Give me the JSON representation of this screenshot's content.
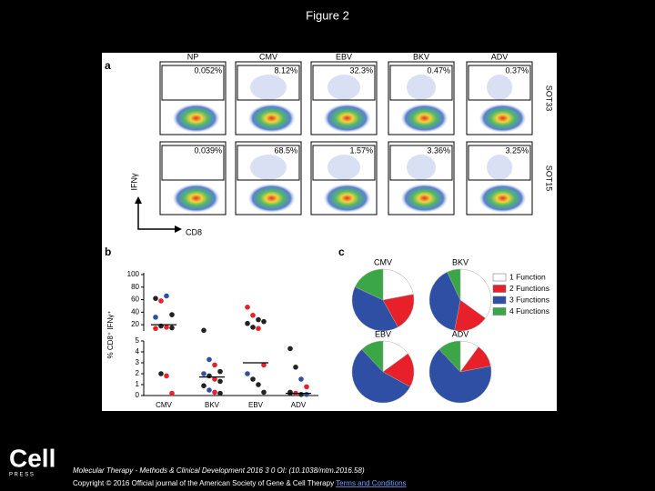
{
  "header": {
    "title": "Figure 2"
  },
  "panel_a": {
    "label": "a",
    "columns": [
      "NP",
      "CMV",
      "EBV",
      "BKV",
      "ADV"
    ],
    "rows": [
      {
        "name": "SOT33",
        "percents": [
          "0.052%",
          "8.12%",
          "32.3%",
          "0.47%",
          "0.37%"
        ]
      },
      {
        "name": "SOT15",
        "percents": [
          "0.039%",
          "68.5%",
          "1.57%",
          "3.36%",
          "3.25%"
        ]
      }
    ],
    "y_axis": "IFNγ",
    "x_axis": "CD8"
  },
  "chart_data": [
    {
      "type": "dot",
      "label": "b",
      "y_label": "% CD8⁺ IFNγ⁺",
      "categories": [
        "CMV",
        "BKV",
        "EBV",
        "ADV"
      ],
      "upper": {
        "ylim": [
          10,
          100
        ],
        "yticks": [
          20,
          40,
          60,
          80,
          100
        ]
      },
      "lower": {
        "ylim": [
          0,
          5
        ],
        "yticks": [
          0,
          1,
          2,
          3,
          4,
          5
        ]
      },
      "groups": [
        {
          "median": 20,
          "points": [
            {
              "value": 62,
              "color": "#222222"
            },
            {
              "value": 58,
              "color": "#e8202a"
            },
            {
              "value": 66,
              "color": "#2e4fa3"
            },
            {
              "value": 36,
              "color": "#222222"
            },
            {
              "value": 32,
              "color": "#2e4fa3"
            },
            {
              "value": 18,
              "color": "#222222"
            },
            {
              "value": 16,
              "color": "#e8202a"
            },
            {
              "value": 15,
              "color": "#222222"
            },
            {
              "value": 14,
              "color": "#e8202a"
            },
            {
              "value": 2,
              "color": "#222222"
            },
            {
              "value": 1.8,
              "color": "#e8202a"
            },
            {
              "value": 0.2,
              "color": "#e8202a"
            }
          ]
        },
        {
          "median": 1.7,
          "points": [
            {
              "value": 11,
              "color": "#222222"
            },
            {
              "value": 3.3,
              "color": "#2e4fa3"
            },
            {
              "value": 2.8,
              "color": "#e8202a"
            },
            {
              "value": 2.2,
              "color": "#222222"
            },
            {
              "value": 2,
              "color": "#2e4fa3"
            },
            {
              "value": 1.8,
              "color": "#222222"
            },
            {
              "value": 1.5,
              "color": "#e8202a"
            },
            {
              "value": 1.3,
              "color": "#222222"
            },
            {
              "value": 0.9,
              "color": "#222222"
            },
            {
              "value": 0.5,
              "color": "#2e4fa3"
            },
            {
              "value": 0.3,
              "color": "#e8202a"
            },
            {
              "value": 0.2,
              "color": "#222222"
            }
          ]
        },
        {
          "median": 3,
          "points": [
            {
              "value": 48,
              "color": "#e8202a"
            },
            {
              "value": 35,
              "color": "#e8202a"
            },
            {
              "value": 28,
              "color": "#222222"
            },
            {
              "value": 25,
              "color": "#222222"
            },
            {
              "value": 22,
              "color": "#222222"
            },
            {
              "value": 16,
              "color": "#222222"
            },
            {
              "value": 14,
              "color": "#e8202a"
            },
            {
              "value": 2.8,
              "color": "#e8202a"
            },
            {
              "value": 2,
              "color": "#2e4fa3"
            },
            {
              "value": 1.5,
              "color": "#222222"
            },
            {
              "value": 1,
              "color": "#222222"
            },
            {
              "value": 0.3,
              "color": "#222222"
            }
          ]
        },
        {
          "median": 0.2,
          "points": [
            {
              "value": 4.3,
              "color": "#222222"
            },
            {
              "value": 2.6,
              "color": "#222222"
            },
            {
              "value": 1.5,
              "color": "#2e4fa3"
            },
            {
              "value": 0.8,
              "color": "#e8202a"
            },
            {
              "value": 0.3,
              "color": "#222222"
            },
            {
              "value": 0.2,
              "color": "#e8202a"
            },
            {
              "value": 0.1,
              "color": "#222222"
            },
            {
              "value": 0.1,
              "color": "#2e4fa3"
            },
            {
              "value": 0.2,
              "color": "#222222"
            }
          ]
        }
      ]
    },
    {
      "type": "pie",
      "label": "c",
      "categories": [
        "1 Function",
        "2 Functions",
        "3 Functions",
        "4 Functions"
      ],
      "colors": [
        "#ffffff",
        "#e8202a",
        "#2e4fa3",
        "#3aa648"
      ],
      "pies": [
        {
          "name": "CMV",
          "values": [
            22,
            20,
            40,
            18
          ]
        },
        {
          "name": "BKV",
          "values": [
            35,
            18,
            40,
            7
          ]
        },
        {
          "name": "EBV",
          "values": [
            15,
            18,
            55,
            12
          ]
        },
        {
          "name": "ADV",
          "values": [
            10,
            12,
            66,
            12
          ]
        }
      ]
    }
  ],
  "footer": {
    "logo": "Cell",
    "logo_sub": "P R E S S",
    "citation": "Molecular Therapy - Methods & Clinical Development 2016 3 0 OI: (10.1038/mtm.2016.58)",
    "copyright": "Copyright © 2016 Official journal of the American Society of Gene & Cell Therapy",
    "link": "Terms and Conditions"
  }
}
